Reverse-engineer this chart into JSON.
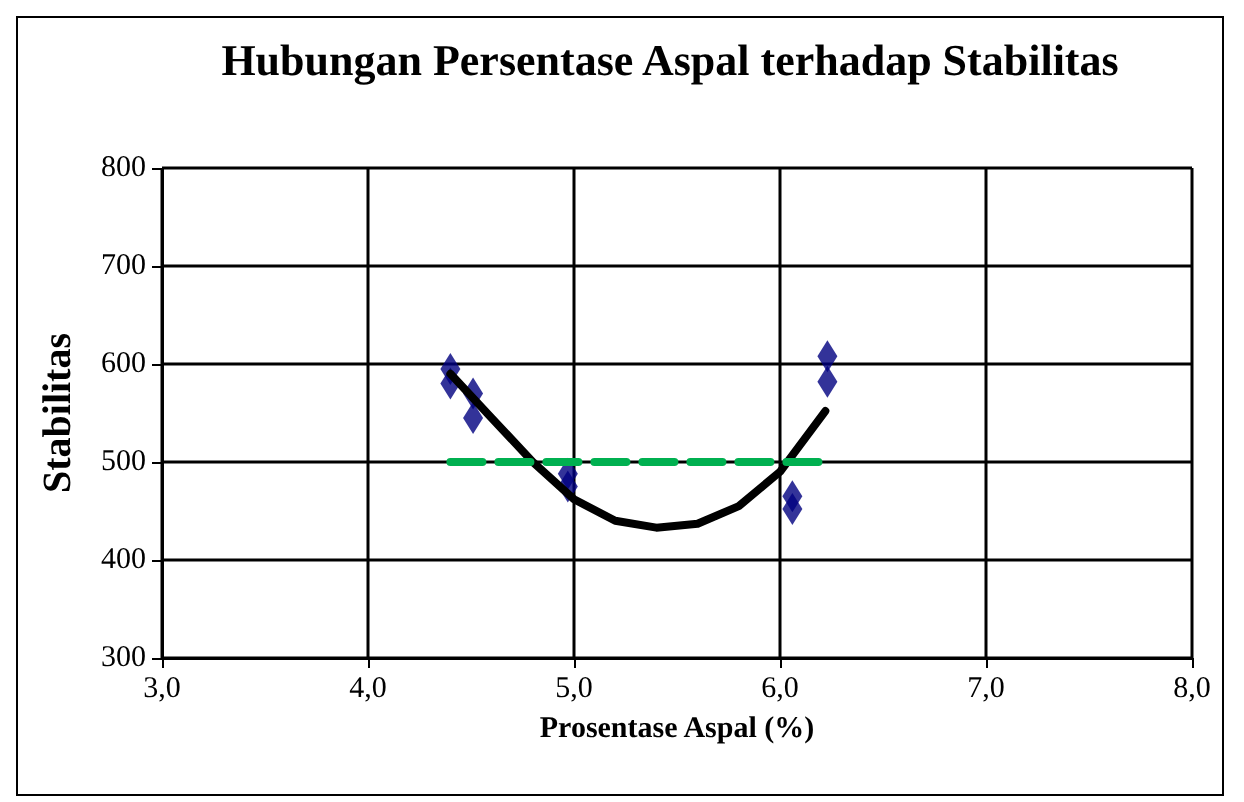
{
  "chart_data": {
    "type": "scatter",
    "title": "Hubungan Persentase Aspal terhadap Stabilitas",
    "xlabel": "Prosentase Aspal (%)",
    "ylabel": "Stabilitas",
    "xlim": [
      3,
      8
    ],
    "xticks": [
      {
        "value": 3,
        "label": "3,0"
      },
      {
        "value": 4,
        "label": "4,0"
      },
      {
        "value": 5,
        "label": "5,0"
      },
      {
        "value": 6,
        "label": "6,0"
      },
      {
        "value": 7,
        "label": "7,0"
      },
      {
        "value": 8,
        "label": "8,0"
      }
    ],
    "ylim": [
      300,
      800
    ],
    "yticks": [
      300,
      400,
      500,
      600,
      700,
      800
    ],
    "grid": true,
    "series": [
      {
        "marker": "diamond",
        "color": "#000080",
        "x": [
          4.4,
          4.4,
          4.51,
          4.51,
          4.97,
          4.97,
          6.06,
          6.06,
          6.23,
          6.23
        ],
        "values": [
          595,
          580,
          570,
          545,
          488,
          475,
          465,
          452,
          608,
          582
        ]
      },
      {
        "type": "line",
        "marker": "none",
        "line_style": "solid",
        "color": "#000000",
        "x": [
          4.4,
          4.6,
          4.8,
          5.0,
          5.2,
          5.4,
          5.6,
          5.8,
          6.0,
          6.22
        ],
        "values": [
          590,
          545,
          500,
          462,
          440,
          433,
          437,
          455,
          490,
          552
        ]
      },
      {
        "type": "line",
        "marker": "none",
        "line_style": "dashed",
        "color": "#00b050",
        "x": [
          4.4,
          6.2
        ],
        "values": [
          500,
          500
        ]
      }
    ]
  }
}
